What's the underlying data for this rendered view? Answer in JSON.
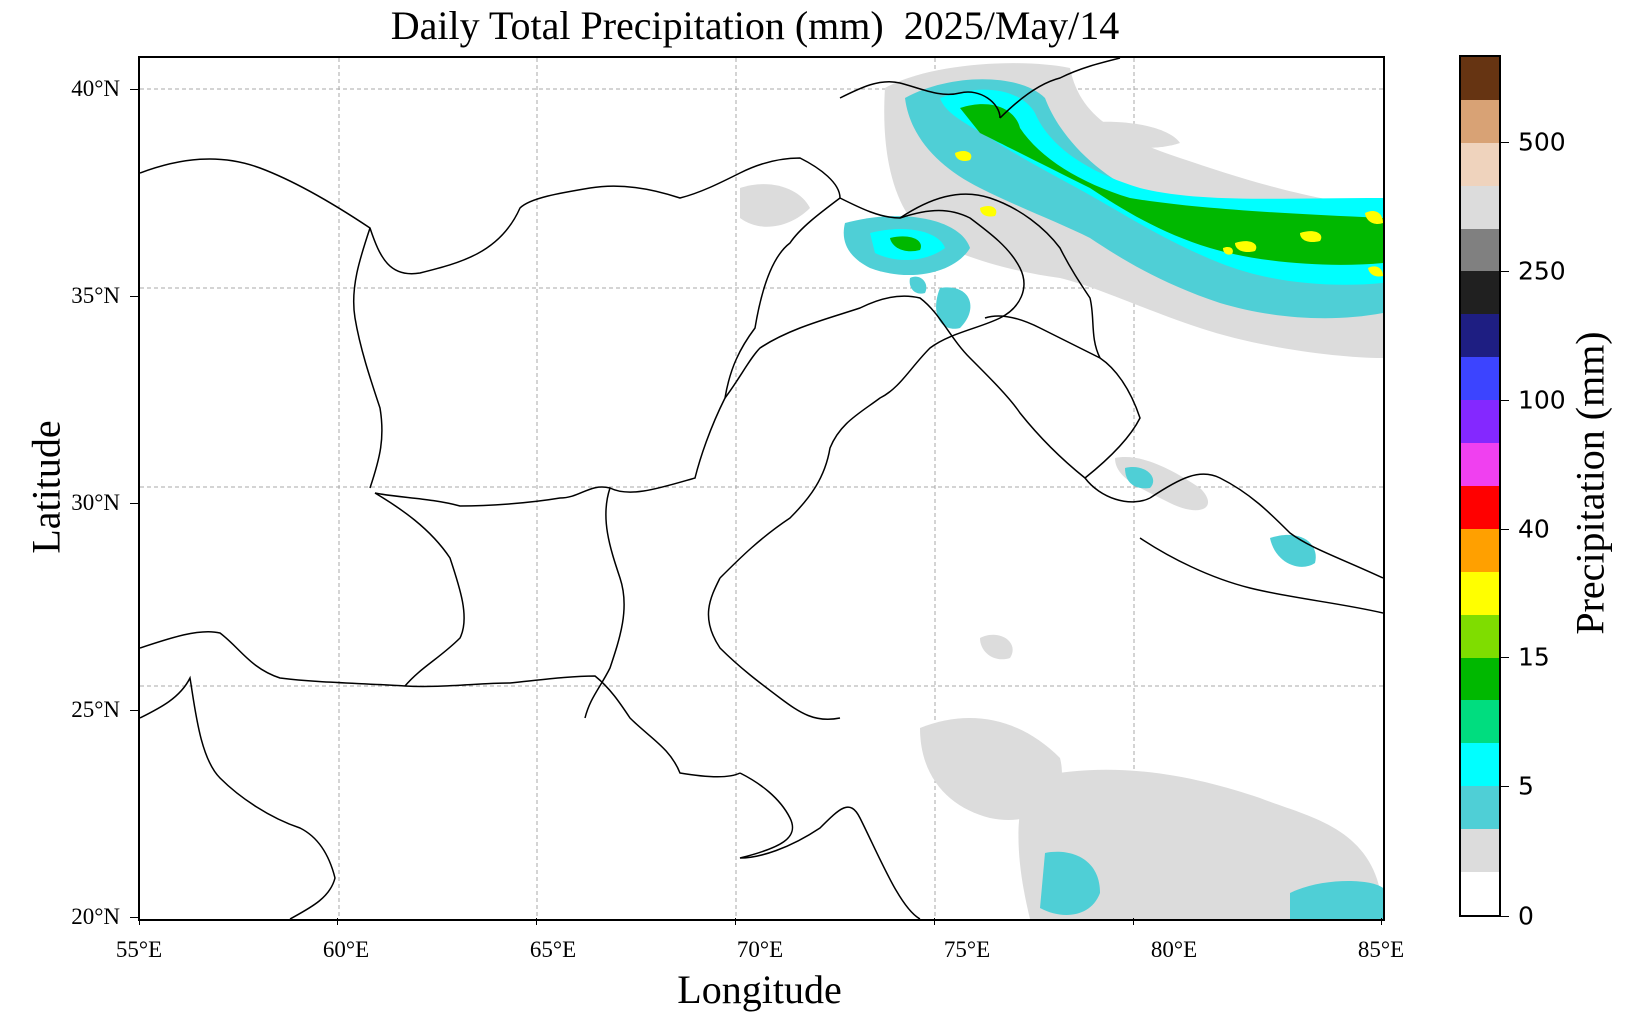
{
  "title": "Daily Total Precipitation (mm)  2025/May/14",
  "xlabel": "Longitude",
  "ylabel": "Latitude",
  "x_ticks": [
    "55°E",
    "60°E",
    "65°E",
    "70°E",
    "75°E",
    "80°E",
    "85°E"
  ],
  "y_ticks": [
    "40°N",
    "35°N",
    "30°N",
    "25°N",
    "20°N"
  ],
  "extent": {
    "lon": [
      55,
      85
    ],
    "lat": [
      20,
      40.8
    ]
  },
  "colorbar": {
    "label": "Precipitation (mm)",
    "tick_labels": [
      "0",
      "5",
      "15",
      "40",
      "100",
      "250",
      "500"
    ],
    "colors": [
      "#ffffff",
      "#dcdcdc",
      "#4fcfd6",
      "#00ffff",
      "#00dd7f",
      "#00b800",
      "#7fdd00",
      "#ffff00",
      "#ffa000",
      "#ff0000",
      "#f040f0",
      "#8428ff",
      "#3c44ff",
      "#1e1e82",
      "#202020",
      "#808080",
      "#dcdcdc",
      "#efd3bd",
      "#d8a275",
      "#663412"
    ]
  },
  "precip_regions": [
    {
      "level": "light",
      "color": "#dcdcdc"
    },
    {
      "level": "moderate",
      "color": "#4fcfd6"
    },
    {
      "level": "heavy",
      "color": "#00ffff"
    },
    {
      "level": "very-heavy",
      "color": "#00b800"
    },
    {
      "level": "extreme",
      "color": "#ffff00"
    }
  ]
}
